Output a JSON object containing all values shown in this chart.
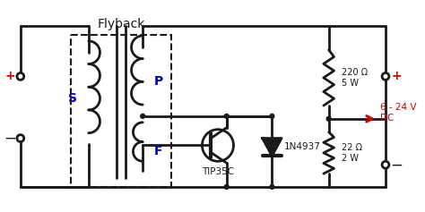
{
  "bg_color": "#ffffff",
  "line_color": "#1a1a1a",
  "text_color_black": "#1a1a1a",
  "text_color_blue": "#0000cc",
  "text_color_red": "#cc0000",
  "text_color_plus": "#cc0000",
  "fig_bg": "#ffffff",
  "title": "Flyback",
  "label_S": "S",
  "label_P": "P",
  "label_F": "F",
  "label_transistor": "TIP35C",
  "label_diode": "1N4937",
  "label_r1": "220 Ω\n5 W",
  "label_r2": "22 Ω\n2 W",
  "label_output": "6 - 24 V\nDC",
  "figsize": [
    4.74,
    2.37
  ],
  "dpi": 100
}
